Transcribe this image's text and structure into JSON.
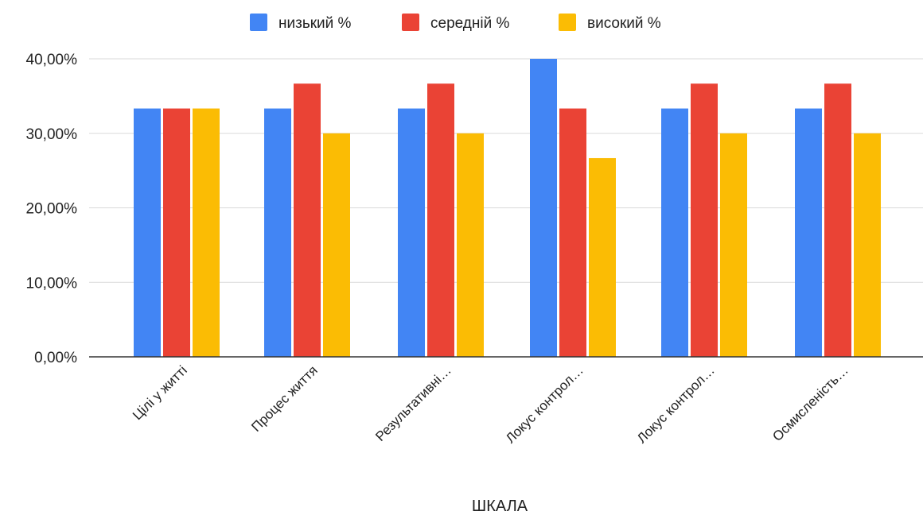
{
  "chart_data": {
    "type": "bar",
    "xlabel": "ШКАЛА",
    "ylabel": "",
    "categories": [
      "Цілі у житті",
      "Процес життя",
      "Результативні…",
      "Локус контрол…",
      "Локус контрол…",
      "Осмисленість…"
    ],
    "series": [
      {
        "name": "низький %",
        "color": "#4285F4",
        "values": [
          33.33,
          33.33,
          33.33,
          40.0,
          33.33,
          33.33
        ]
      },
      {
        "name": "середній %",
        "color": "#EA4335",
        "values": [
          33.33,
          36.67,
          36.67,
          33.33,
          36.67,
          36.67
        ]
      },
      {
        "name": "високий %",
        "color": "#FBBC04",
        "values": [
          33.33,
          30.0,
          30.0,
          26.67,
          30.0,
          30.0
        ]
      }
    ],
    "ylim": [
      0,
      40
    ],
    "yticks": [
      "0,00%",
      "10,00%",
      "20,00%",
      "30,00%",
      "40,00%"
    ],
    "grid": true,
    "legend_position": "top-center"
  }
}
